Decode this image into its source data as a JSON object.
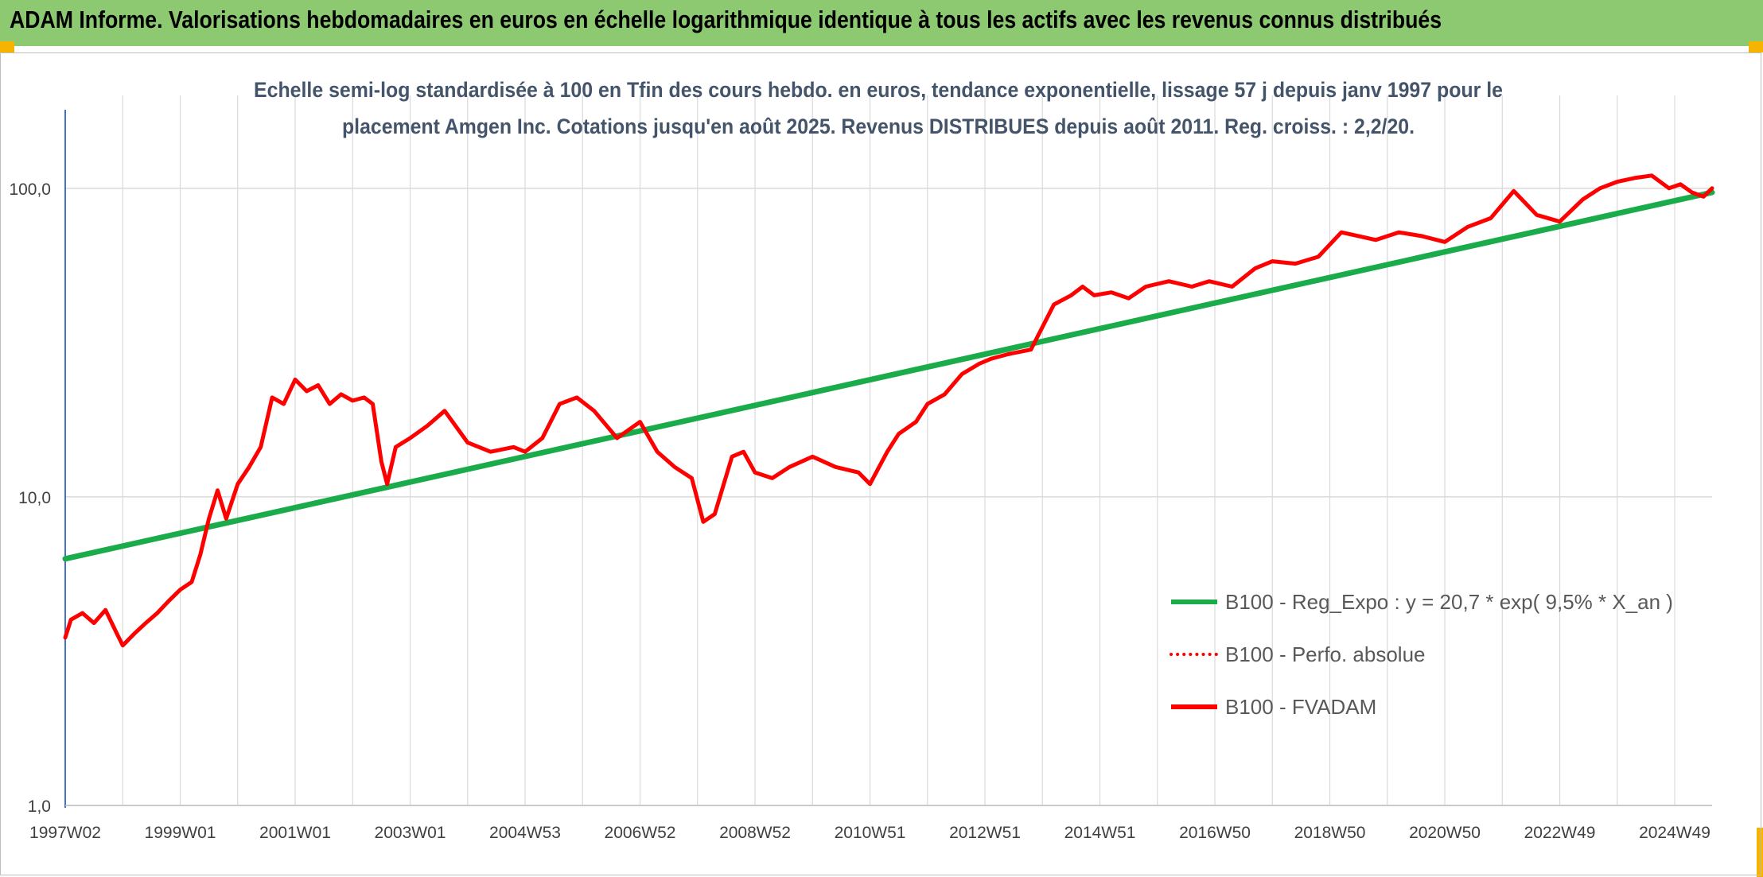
{
  "header": {
    "title": "ADAM Informe. Valorisations hebdomadaires en euros en échelle logarithmique identique à tous les actifs avec les revenus connus distribués"
  },
  "colors": {
    "header_bg": "#8cc971",
    "accent_corner": "#f4b400",
    "trend_line": "#1aab4a",
    "fvadam_line": "#ff0000",
    "grid": "#d9d9d9",
    "axis_text": "#404040",
    "title_text": "#44546a"
  },
  "chart_data": {
    "type": "line",
    "title_line1": "Echelle semi-log standardisée à 100 en Tfin des cours hebdo. en euros, tendance exponentielle, lissage 57 j depuis janv 1997 pour le",
    "title_line2": "placement Amgen Inc. Cotations jusqu'en août 2025. Revenus DISTRIBUES depuis août 2011. Reg. croiss. : 2,2/20.",
    "y_scale": "log",
    "ylim": [
      1,
      200
    ],
    "y_ticks": [
      {
        "value": 1,
        "label": "1,0"
      },
      {
        "value": 10,
        "label": "10,0"
      },
      {
        "value": 100,
        "label": "100,0"
      }
    ],
    "xlim": [
      1997.0,
      2025.65
    ],
    "x_gridlines": [
      1998,
      1999,
      2000,
      2001,
      2002,
      2003,
      2004,
      2005,
      2006,
      2007,
      2008,
      2009,
      2010,
      2011,
      2012,
      2013,
      2014,
      2015,
      2016,
      2017,
      2018,
      2019,
      2020,
      2021,
      2022,
      2023,
      2024,
      2025
    ],
    "x_ticks": [
      {
        "x": 1997.0,
        "label": "1997W02"
      },
      {
        "x": 1999.0,
        "label": "1999W01"
      },
      {
        "x": 2001.0,
        "label": "2001W01"
      },
      {
        "x": 2003.0,
        "label": "2003W01"
      },
      {
        "x": 2005.0,
        "label": "2004W53"
      },
      {
        "x": 2007.0,
        "label": "2006W52"
      },
      {
        "x": 2009.0,
        "label": "2008W52"
      },
      {
        "x": 2011.0,
        "label": "2010W51"
      },
      {
        "x": 2013.0,
        "label": "2012W51"
      },
      {
        "x": 2015.0,
        "label": "2014W51"
      },
      {
        "x": 2017.0,
        "label": "2016W50"
      },
      {
        "x": 2019.0,
        "label": "2018W50"
      },
      {
        "x": 2021.0,
        "label": "2020W50"
      },
      {
        "x": 2023.0,
        "label": "2022W49"
      },
      {
        "x": 2025.0,
        "label": "2024W49"
      }
    ],
    "legend_position": "bottom-right",
    "series": [
      {
        "name": "B100 - Reg_Expo : y = 20,7 * exp( 9,5% *  X_an )",
        "style": "solid",
        "color": "#1aab4a",
        "x": [
          1997.0,
          2025.65
        ],
        "y": [
          6.3,
          97
        ]
      },
      {
        "name": "B100 - Perfo. absolue",
        "style": "dotted",
        "color": "#ff0000",
        "x": [],
        "y": []
      },
      {
        "name": "B100 - FVADAM",
        "style": "solid",
        "color": "#ff0000",
        "x": [
          1997.0,
          1997.1,
          1997.3,
          1997.5,
          1997.7,
          1997.9,
          1998.0,
          1998.2,
          1998.4,
          1998.6,
          1998.8,
          1999.0,
          1999.2,
          1999.35,
          1999.5,
          1999.65,
          1999.8,
          2000.0,
          2000.2,
          2000.4,
          2000.6,
          2000.8,
          2001.0,
          2001.2,
          2001.4,
          2001.6,
          2001.8,
          2002.0,
          2002.2,
          2002.35,
          2002.5,
          2002.6,
          2002.75,
          2003.0,
          2003.3,
          2003.6,
          2004.0,
          2004.4,
          2004.8,
          2005.0,
          2005.3,
          2005.6,
          2005.9,
          2006.2,
          2006.6,
          2007.0,
          2007.3,
          2007.6,
          2007.9,
          2008.1,
          2008.3,
          2008.6,
          2008.8,
          2009.0,
          2009.3,
          2009.6,
          2010.0,
          2010.4,
          2010.8,
          2011.0,
          2011.3,
          2011.5,
          2011.8,
          2012.0,
          2012.3,
          2012.6,
          2012.9,
          2013.1,
          2013.4,
          2013.8,
          2014.2,
          2014.5,
          2014.7,
          2014.9,
          2015.2,
          2015.5,
          2015.8,
          2016.2,
          2016.6,
          2016.9,
          2017.3,
          2017.7,
          2018.0,
          2018.4,
          2018.8,
          2019.2,
          2019.5,
          2019.8,
          2020.2,
          2020.6,
          2021.0,
          2021.4,
          2021.8,
          2022.2,
          2022.6,
          2023.0,
          2023.4,
          2023.7,
          2024.0,
          2024.3,
          2024.6,
          2024.9,
          2025.1,
          2025.3,
          2025.5,
          2025.65
        ],
        "y": [
          3.5,
          4.0,
          4.2,
          3.9,
          4.3,
          3.6,
          3.3,
          3.6,
          3.9,
          4.2,
          4.6,
          5.0,
          5.3,
          6.5,
          8.5,
          10.5,
          8.5,
          11.0,
          12.5,
          14.5,
          21.0,
          20.0,
          24.0,
          22.0,
          23.0,
          20.0,
          21.5,
          20.5,
          21.0,
          20.0,
          13.0,
          11.0,
          14.5,
          15.5,
          17.0,
          19.0,
          15.0,
          14.0,
          14.5,
          14.0,
          15.5,
          20.0,
          21.0,
          19.0,
          15.5,
          17.5,
          14.0,
          12.5,
          11.5,
          8.3,
          8.8,
          13.5,
          14.0,
          12.0,
          11.5,
          12.5,
          13.5,
          12.5,
          12.0,
          11.0,
          14.0,
          16.0,
          17.5,
          20.0,
          21.5,
          25.0,
          27.0,
          28.0,
          29.0,
          30.0,
          42.0,
          45.0,
          48.0,
          45.0,
          46.0,
          44.0,
          48.0,
          50.0,
          48.0,
          50.0,
          48.0,
          55.0,
          58.0,
          57.0,
          60.0,
          72.0,
          70.0,
          68.0,
          72.0,
          70.0,
          67.0,
          75.0,
          80.0,
          98.0,
          82.0,
          78.0,
          92.0,
          100.0,
          105.0,
          108.0,
          110.0,
          100.0,
          103.0,
          97.0,
          94.0,
          100.0
        ]
      }
    ]
  }
}
